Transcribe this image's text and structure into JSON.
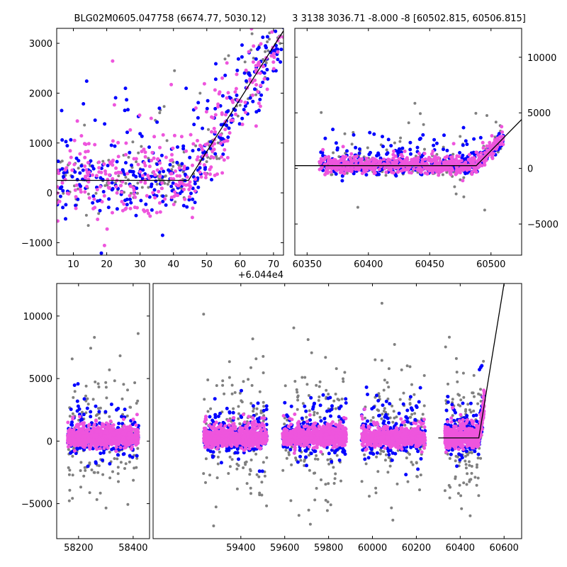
{
  "figure": {
    "title_left": "BLG02M0605.047758 (6674.77, 5030.12)",
    "title_right": "3 3138 3036.71 -8.000 -8 [60502.815, 60506.815]"
  },
  "colors": {
    "series_gray": "#808080",
    "series_blue": "#0000ff",
    "series_magenta": "#ee55dd",
    "model_line": "#000000"
  },
  "chart_data": [
    {
      "id": "zoom_left",
      "type": "scatter",
      "xlim": [
        5,
        73
      ],
      "ylim": [
        -1250,
        3300
      ],
      "xticks": [
        10,
        20,
        30,
        40,
        50,
        60,
        70
      ],
      "yticks": [
        -1000,
        0,
        1000,
        2000,
        3000
      ],
      "tick_side_y": "left",
      "offset_label": "+6.044e4",
      "model": {
        "x": [
          5,
          44.5,
          73
        ],
        "y": [
          250,
          250,
          3250
        ]
      },
      "series": [
        {
          "color": "gray",
          "segments": [
            [
              5,
              73,
              300,
              1000
            ]
          ],
          "count": 180,
          "size": 2.0
        },
        {
          "color": "blue",
          "segments": [
            [
              5,
              73,
              300,
              900
            ]
          ],
          "count": 320,
          "size": 2.5
        },
        {
          "color": "magenta",
          "segments": [
            [
              5,
              73,
              400,
              700
            ]
          ],
          "count": 340,
          "size": 2.5
        }
      ]
    },
    {
      "id": "zoom_right",
      "type": "scatter",
      "xlim": [
        60340,
        60525
      ],
      "ylim": [
        -7800,
        12600
      ],
      "xticks": [
        60350,
        60400,
        60450,
        60500
      ],
      "yticks": [
        -5000,
        0,
        5000,
        10000
      ],
      "tick_side_y": "right",
      "model": {
        "x": [
          60340,
          60488,
          60525
        ],
        "y": [
          250,
          250,
          4400
        ]
      },
      "series": [
        {
          "color": "gray",
          "segments": [
            [
              60360,
              60510,
              500,
              2500
            ]
          ],
          "count": 220,
          "size": 2.0
        },
        {
          "color": "blue",
          "segments": [
            [
              60360,
              60510,
              300,
              1300
            ]
          ],
          "count": 500,
          "size": 2.5
        },
        {
          "color": "magenta",
          "segments": [
            [
              60360,
              60510,
              350,
              500
            ]
          ],
          "count": 700,
          "size": 2.5
        }
      ]
    },
    {
      "id": "full_left",
      "type": "scatter",
      "xlim": [
        58120,
        58460
      ],
      "ylim": [
        -7800,
        12600
      ],
      "xticks": [
        58200,
        58400
      ],
      "yticks": [
        -5000,
        0,
        5000,
        10000
      ],
      "tick_side_y": "left",
      "series": [
        {
          "color": "gray",
          "segments": [
            [
              58160,
              58420,
              2500,
              3000
            ]
          ],
          "count": 160,
          "size": 2.0
        },
        {
          "color": "blue",
          "segments": [
            [
              58160,
              58420,
              600,
              1800
            ]
          ],
          "count": 300,
          "size": 2.5
        },
        {
          "color": "magenta",
          "segments": [
            [
              58160,
              58420,
              300,
              600
            ]
          ],
          "count": 900,
          "size": 2.5
        }
      ]
    },
    {
      "id": "full_right",
      "type": "scatter",
      "xlim": [
        59000,
        60680
      ],
      "ylim": [
        -7800,
        12600
      ],
      "xticks": [
        59400,
        59600,
        59800,
        60000,
        60200,
        60400,
        60600
      ],
      "tick_side_y": "none",
      "model": {
        "x": [
          60300,
          60485,
          60600
        ],
        "y": [
          250,
          250,
          12600
        ]
      },
      "series": [
        {
          "color": "gray",
          "segments": [
            [
              59230,
              59520,
              2500,
              3000
            ],
            [
              59590,
              59880,
              2500,
              3000
            ],
            [
              59950,
              60240,
              2500,
              3000
            ],
            [
              60330,
              60510,
              2500,
              3000
            ]
          ],
          "count": 140,
          "size": 2.0
        },
        {
          "color": "blue",
          "segments": [
            [
              59230,
              59520,
              600,
              1800
            ],
            [
              59590,
              59880,
              600,
              1800
            ],
            [
              59950,
              60240,
              600,
              1800
            ],
            [
              60330,
              60510,
              600,
              1800
            ]
          ],
          "count": 260,
          "size": 2.5
        },
        {
          "color": "magenta",
          "segments": [
            [
              59230,
              59520,
              300,
              600
            ],
            [
              59590,
              59880,
              300,
              600
            ],
            [
              59950,
              60240,
              300,
              600
            ],
            [
              60330,
              60510,
              300,
              600
            ]
          ],
          "count": 800,
          "size": 2.5
        }
      ]
    }
  ]
}
